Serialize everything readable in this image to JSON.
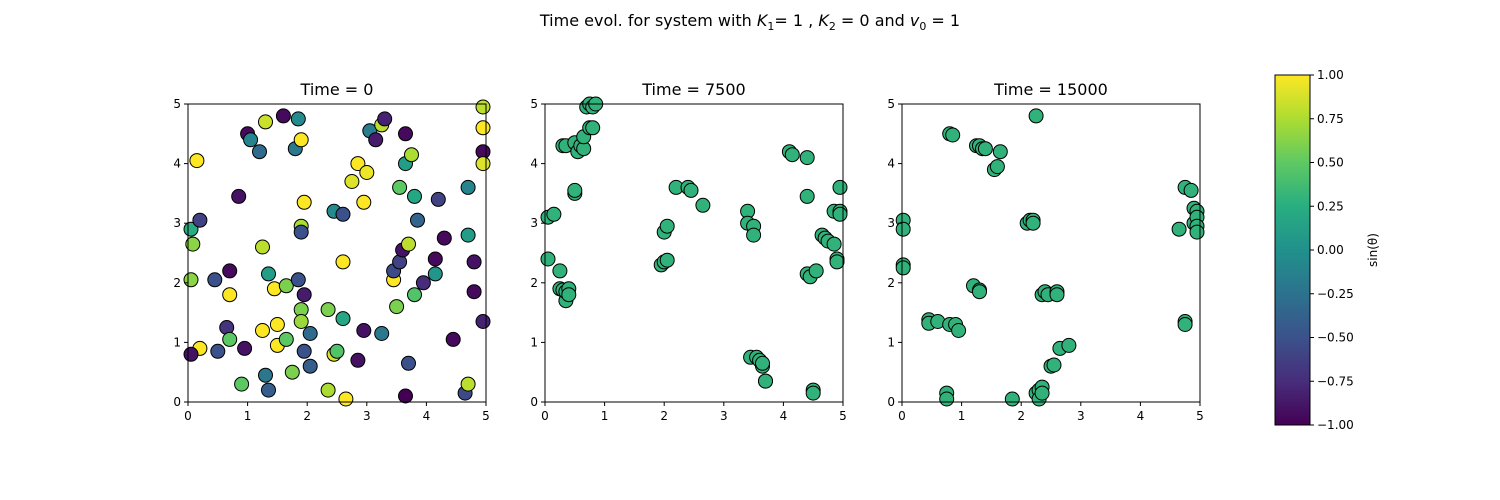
{
  "figure": {
    "suptitle_parts": [
      "Time evol. for system with ",
      "K",
      "1",
      "= 1 , ",
      "K",
      "2",
      " = 0 and ",
      "v",
      "0",
      " = 1"
    ]
  },
  "colorbar": {
    "label": "sin(θ)",
    "ticks": [
      1.0,
      0.75,
      0.5,
      0.25,
      0.0,
      -0.25,
      -0.5,
      -0.75,
      -1.0
    ],
    "tick_labels": [
      "1.00",
      "0.75",
      "0.50",
      "0.25",
      "0.00",
      "−0.25",
      "−0.50",
      "−0.75",
      "−1.00"
    ],
    "range": [
      -1,
      1
    ],
    "colormap": "viridis"
  },
  "chart_data": [
    {
      "type": "scatter",
      "title": "Time = 0",
      "xlim": [
        0,
        5
      ],
      "ylim": [
        0,
        5
      ],
      "xticks": [
        0,
        1,
        2,
        3,
        4,
        5
      ],
      "yticks": [
        0,
        1,
        2,
        3,
        4,
        5
      ],
      "grid": false,
      "points": [
        [
          0.05,
          2.9,
          0.25
        ],
        [
          0.08,
          2.65,
          0.65
        ],
        [
          0.05,
          2.05,
          0.65
        ],
        [
          0.2,
          3.05,
          -0.6
        ],
        [
          0.15,
          4.05,
          1.0
        ],
        [
          0.2,
          0.9,
          1.0
        ],
        [
          0.05,
          0.8,
          -0.9
        ],
        [
          0.45,
          2.05,
          -0.5
        ],
        [
          0.5,
          0.85,
          -0.5
        ],
        [
          0.65,
          1.25,
          -0.7
        ],
        [
          0.7,
          1.05,
          0.5
        ],
        [
          0.7,
          2.2,
          -0.95
        ],
        [
          0.7,
          1.8,
          1.0
        ],
        [
          0.85,
          3.45,
          -0.9
        ],
        [
          0.9,
          0.3,
          0.5
        ],
        [
          0.95,
          0.9,
          -0.9
        ],
        [
          1.0,
          4.5,
          -0.95
        ],
        [
          1.05,
          4.4,
          -0.1
        ],
        [
          1.2,
          4.2,
          -0.3
        ],
        [
          1.25,
          1.2,
          1.0
        ],
        [
          1.25,
          2.6,
          0.8
        ],
        [
          1.3,
          4.7,
          0.85
        ],
        [
          1.3,
          0.45,
          -0.2
        ],
        [
          1.35,
          0.2,
          -0.4
        ],
        [
          1.35,
          2.15,
          0.1
        ],
        [
          1.45,
          1.9,
          1.0
        ],
        [
          1.5,
          0.95,
          1.0
        ],
        [
          1.5,
          1.3,
          1.0
        ],
        [
          1.6,
          4.8,
          -0.95
        ],
        [
          1.65,
          1.95,
          0.6
        ],
        [
          1.65,
          1.05,
          0.5
        ],
        [
          1.75,
          0.5,
          0.6
        ],
        [
          1.8,
          4.25,
          -0.2
        ],
        [
          1.85,
          2.05,
          -0.5
        ],
        [
          1.85,
          4.75,
          -0.05
        ],
        [
          1.9,
          4.4,
          1.0
        ],
        [
          1.9,
          2.95,
          0.75
        ],
        [
          1.9,
          2.85,
          -0.5
        ],
        [
          1.9,
          1.55,
          0.6
        ],
        [
          1.9,
          1.35,
          0.7
        ],
        [
          1.95,
          0.85,
          -0.5
        ],
        [
          1.95,
          3.35,
          1.0
        ],
        [
          1.95,
          1.8,
          -0.85
        ],
        [
          2.05,
          1.15,
          -0.3
        ],
        [
          2.05,
          0.6,
          -0.4
        ],
        [
          2.35,
          1.55,
          0.6
        ],
        [
          2.35,
          0.2,
          0.75
        ],
        [
          2.45,
          3.2,
          -0.05
        ],
        [
          2.45,
          0.8,
          0.9
        ],
        [
          2.5,
          0.85,
          0.45
        ],
        [
          2.6,
          3.15,
          -0.5
        ],
        [
          2.6,
          2.35,
          1.0
        ],
        [
          2.6,
          1.4,
          0.2
        ],
        [
          2.65,
          0.05,
          1.0
        ],
        [
          2.75,
          3.7,
          0.9
        ],
        [
          2.85,
          4.0,
          1.0
        ],
        [
          2.85,
          0.7,
          -0.9
        ],
        [
          2.95,
          3.35,
          1.0
        ],
        [
          2.95,
          1.2,
          -0.9
        ],
        [
          3.0,
          3.85,
          0.95
        ],
        [
          3.05,
          4.55,
          -0.15
        ],
        [
          3.15,
          4.4,
          -0.85
        ],
        [
          3.25,
          1.15,
          -0.2
        ],
        [
          3.25,
          4.65,
          0.8
        ],
        [
          3.3,
          4.75,
          -0.8
        ],
        [
          3.45,
          2.05,
          1.0
        ],
        [
          3.45,
          2.2,
          -0.55
        ],
        [
          3.5,
          1.6,
          0.6
        ],
        [
          3.55,
          3.6,
          0.5
        ],
        [
          3.55,
          2.35,
          -0.6
        ],
        [
          3.6,
          2.55,
          -0.9
        ],
        [
          3.65,
          4.5,
          -0.95
        ],
        [
          3.65,
          4.0,
          0.1
        ],
        [
          3.65,
          0.1,
          -1.0
        ],
        [
          3.7,
          0.65,
          -0.5
        ],
        [
          3.7,
          2.65,
          0.8
        ],
        [
          3.75,
          4.15,
          0.75
        ],
        [
          3.8,
          3.45,
          0.2
        ],
        [
          3.8,
          1.8,
          0.45
        ],
        [
          3.85,
          3.05,
          -0.35
        ],
        [
          3.95,
          2.0,
          -0.75
        ],
        [
          4.15,
          2.4,
          -0.95
        ],
        [
          4.15,
          2.15,
          0.05
        ],
        [
          4.2,
          3.4,
          -0.6
        ],
        [
          4.3,
          2.75,
          -0.95
        ],
        [
          4.45,
          1.05,
          -0.95
        ],
        [
          4.65,
          0.15,
          -0.55
        ],
        [
          4.7,
          0.3,
          0.8
        ],
        [
          4.7,
          3.6,
          -0.1
        ],
        [
          4.7,
          2.8,
          0.1
        ],
        [
          4.8,
          2.35,
          -0.9
        ],
        [
          4.8,
          1.85,
          -0.95
        ],
        [
          4.95,
          4.95,
          0.8
        ],
        [
          4.95,
          4.6,
          1.0
        ],
        [
          4.95,
          4.2,
          -0.95
        ],
        [
          4.95,
          4.0,
          0.9
        ],
        [
          4.95,
          1.35,
          -0.8
        ]
      ]
    },
    {
      "type": "scatter",
      "title": "Time = 7500",
      "xlim": [
        0,
        5
      ],
      "ylim": [
        0,
        5
      ],
      "xticks": [
        0,
        1,
        2,
        3,
        4,
        5
      ],
      "yticks": [
        0,
        1,
        2,
        3,
        4,
        5
      ],
      "grid": false,
      "points": [
        [
          0.05,
          3.1,
          0.3
        ],
        [
          0.05,
          2.4,
          0.3
        ],
        [
          0.15,
          3.15,
          0.3
        ],
        [
          0.25,
          2.2,
          0.3
        ],
        [
          0.25,
          1.9,
          0.3
        ],
        [
          0.3,
          1.88,
          0.3
        ],
        [
          0.3,
          4.3,
          0.3
        ],
        [
          0.35,
          4.3,
          0.3
        ],
        [
          0.35,
          1.7,
          0.3
        ],
        [
          0.35,
          1.85,
          0.3
        ],
        [
          0.4,
          1.9,
          0.3
        ],
        [
          0.4,
          1.8,
          0.3
        ],
        [
          0.5,
          3.5,
          0.3
        ],
        [
          0.5,
          3.55,
          0.3
        ],
        [
          0.5,
          4.35,
          0.3
        ],
        [
          0.55,
          4.2,
          0.3
        ],
        [
          0.6,
          4.3,
          0.3
        ],
        [
          0.65,
          4.25,
          0.3
        ],
        [
          0.65,
          4.45,
          0.3
        ],
        [
          0.7,
          4.95,
          0.3
        ],
        [
          0.75,
          4.6,
          0.3
        ],
        [
          0.75,
          5.0,
          0.3
        ],
        [
          0.8,
          4.6,
          0.3
        ],
        [
          0.8,
          4.95,
          0.3
        ],
        [
          0.85,
          5.0,
          0.3
        ],
        [
          1.95,
          2.3,
          0.3
        ],
        [
          2.0,
          2.35,
          0.3
        ],
        [
          2.0,
          2.85,
          0.3
        ],
        [
          2.05,
          2.38,
          0.3
        ],
        [
          2.05,
          2.95,
          0.3
        ],
        [
          2.2,
          3.6,
          0.3
        ],
        [
          2.4,
          3.6,
          0.3
        ],
        [
          2.45,
          3.55,
          0.3
        ],
        [
          2.65,
          3.3,
          0.3
        ],
        [
          3.4,
          3.2,
          0.3
        ],
        [
          3.4,
          3.0,
          0.3
        ],
        [
          3.45,
          0.75,
          0.3
        ],
        [
          3.5,
          2.95,
          0.3
        ],
        [
          3.5,
          2.8,
          0.3
        ],
        [
          3.55,
          0.75,
          0.3
        ],
        [
          3.6,
          0.7,
          0.3
        ],
        [
          3.65,
          0.6,
          0.3
        ],
        [
          3.65,
          0.65,
          0.3
        ],
        [
          3.7,
          0.35,
          0.3
        ],
        [
          3.7,
          0.35,
          0.3
        ],
        [
          4.1,
          4.2,
          0.3
        ],
        [
          4.15,
          4.15,
          0.3
        ],
        [
          4.4,
          4.1,
          0.3
        ],
        [
          4.4,
          3.45,
          0.3
        ],
        [
          4.4,
          2.15,
          0.3
        ],
        [
          4.45,
          2.1,
          0.3
        ],
        [
          4.5,
          0.2,
          0.3
        ],
        [
          4.5,
          0.15,
          0.3
        ],
        [
          4.55,
          2.2,
          0.3
        ],
        [
          4.65,
          2.8,
          0.3
        ],
        [
          4.7,
          2.75,
          0.3
        ],
        [
          4.75,
          2.7,
          0.3
        ],
        [
          4.85,
          3.2,
          0.3
        ],
        [
          4.85,
          2.65,
          0.3
        ],
        [
          4.9,
          2.4,
          0.3
        ],
        [
          4.9,
          2.35,
          0.3
        ],
        [
          4.95,
          3.6,
          0.3
        ],
        [
          4.95,
          3.2,
          0.3
        ],
        [
          4.95,
          3.15,
          0.3
        ]
      ]
    },
    {
      "type": "scatter",
      "title": "Time = 15000",
      "xlim": [
        0,
        5
      ],
      "ylim": [
        0,
        5
      ],
      "xticks": [
        0,
        1,
        2,
        3,
        4,
        5
      ],
      "yticks": [
        0,
        1,
        2,
        3,
        4,
        5
      ],
      "grid": false,
      "points": [
        [
          0.02,
          3.05,
          0.3
        ],
        [
          0.02,
          2.9,
          0.3
        ],
        [
          0.02,
          2.3,
          0.3
        ],
        [
          0.02,
          2.25,
          0.3
        ],
        [
          0.45,
          1.38,
          0.3
        ],
        [
          0.45,
          1.32,
          0.3
        ],
        [
          0.6,
          1.35,
          0.3
        ],
        [
          0.75,
          0.15,
          0.3
        ],
        [
          0.75,
          0.05,
          0.3
        ],
        [
          0.8,
          1.3,
          0.3
        ],
        [
          0.8,
          4.5,
          0.3
        ],
        [
          0.85,
          4.48,
          0.3
        ],
        [
          0.9,
          1.3,
          0.3
        ],
        [
          0.95,
          1.2,
          0.3
        ],
        [
          1.2,
          1.95,
          0.3
        ],
        [
          1.25,
          4.3,
          0.3
        ],
        [
          1.3,
          4.3,
          0.3
        ],
        [
          1.3,
          1.88,
          0.3
        ],
        [
          1.3,
          1.85,
          0.3
        ],
        [
          1.35,
          4.25,
          0.3
        ],
        [
          1.4,
          4.25,
          0.3
        ],
        [
          1.55,
          3.9,
          0.3
        ],
        [
          1.6,
          3.95,
          0.3
        ],
        [
          1.65,
          4.2,
          0.3
        ],
        [
          1.85,
          0.05,
          0.3
        ],
        [
          2.1,
          3.0,
          0.3
        ],
        [
          2.15,
          3.05,
          0.3
        ],
        [
          2.2,
          3.05,
          0.3
        ],
        [
          2.2,
          3.0,
          0.3
        ],
        [
          2.25,
          0.15,
          0.3
        ],
        [
          2.25,
          4.8,
          0.3
        ],
        [
          2.3,
          0.2,
          0.3
        ],
        [
          2.3,
          0.05,
          0.3
        ],
        [
          2.35,
          0.25,
          0.3
        ],
        [
          2.35,
          0.15,
          0.3
        ],
        [
          2.35,
          1.8,
          0.3
        ],
        [
          2.4,
          1.85,
          0.3
        ],
        [
          2.45,
          1.8,
          0.3
        ],
        [
          2.5,
          0.6,
          0.3
        ],
        [
          2.55,
          0.62,
          0.3
        ],
        [
          2.6,
          1.85,
          0.3
        ],
        [
          2.6,
          1.8,
          0.3
        ],
        [
          2.65,
          0.9,
          0.3
        ],
        [
          2.8,
          0.95,
          0.3
        ],
        [
          4.65,
          2.9,
          0.3
        ],
        [
          4.75,
          1.35,
          0.3
        ],
        [
          4.75,
          1.3,
          0.3
        ],
        [
          4.75,
          3.6,
          0.3
        ],
        [
          4.85,
          3.55,
          0.3
        ],
        [
          4.9,
          3.25,
          0.3
        ],
        [
          4.9,
          3.0,
          0.3
        ],
        [
          4.95,
          3.2,
          0.3
        ],
        [
          4.95,
          3.1,
          0.3
        ],
        [
          4.95,
          2.95,
          0.3
        ],
        [
          4.95,
          2.85,
          0.3
        ]
      ]
    }
  ]
}
